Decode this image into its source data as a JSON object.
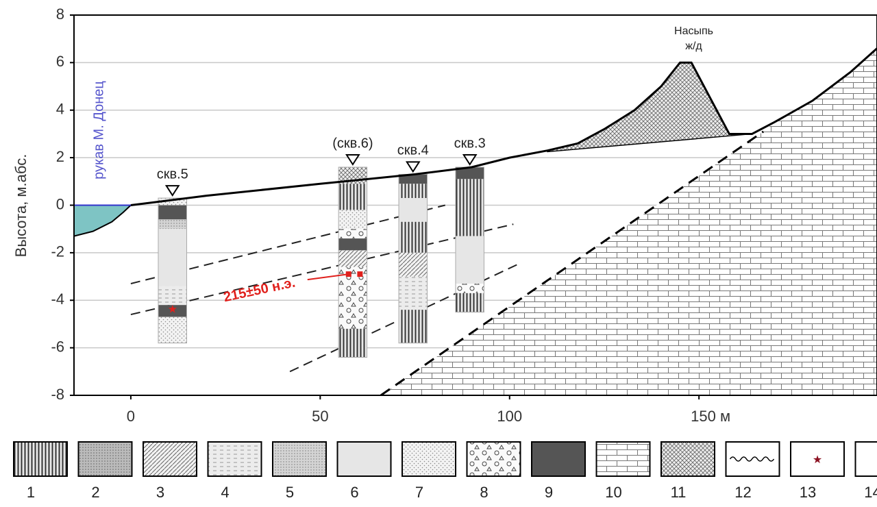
{
  "chart_data": {
    "type": "cross-section",
    "ylabel": "Высота, м.абс.",
    "xlim": [
      -15,
      197
    ],
    "ylim": [
      -8,
      8
    ],
    "xticks": [
      0,
      50,
      100,
      {
        "value": 150,
        "label": "150 м"
      }
    ],
    "yticks": [
      -8,
      -6,
      -4,
      -2,
      0,
      2,
      4,
      6,
      8
    ],
    "grid": true,
    "river": {
      "label": "рукав М. Донец",
      "color": "#7ec4c4",
      "x": [
        -15,
        -10,
        -5,
        -2,
        0
      ],
      "values": [
        -1.3,
        -1.1,
        -0.7,
        -0.3,
        0
      ]
    },
    "surface": {
      "x": [
        0,
        20,
        50,
        75,
        90,
        100,
        110,
        118,
        125,
        133,
        140,
        145,
        148,
        153,
        158,
        164,
        170,
        180,
        190,
        197
      ],
      "values": [
        0,
        0.4,
        0.9,
        1.3,
        1.6,
        2.0,
        2.3,
        2.6,
        3.2,
        4.0,
        5.0,
        6,
        6,
        4.5,
        3.0,
        3.0,
        3.5,
        4.4,
        5.6,
        6.6
      ]
    },
    "embankment": {
      "label": [
        "Насыпь",
        "ж/д"
      ],
      "x": [
        110,
        164
      ],
      "values": [
        2.25,
        3.0
      ]
    },
    "limestone_boundary": {
      "x": [
        66,
        167
      ],
      "values": [
        -8,
        3.1
      ]
    },
    "boreholes": [
      {
        "name": "скв.5",
        "x": 11,
        "top": 0.3,
        "bottom": -5.8,
        "layers": [
          [
            0.3,
            0,
            7
          ],
          [
            0,
            -0.6,
            9
          ],
          [
            -0.6,
            -1,
            5
          ],
          [
            -1,
            -3.4,
            6
          ],
          [
            -3.4,
            -4.2,
            4
          ],
          [
            -4.2,
            -4.7,
            9
          ],
          [
            -4.7,
            -5.8,
            7
          ]
        ]
      },
      {
        "name": "(скв.6)",
        "x": 58.6,
        "top": 1.6,
        "bottom": -6.4,
        "layers": [
          [
            1.6,
            0.9,
            11
          ],
          [
            0.9,
            -0.2,
            1
          ],
          [
            -0.2,
            -1,
            7
          ],
          [
            -1,
            -1.4,
            8
          ],
          [
            -1.4,
            -1.9,
            9
          ],
          [
            -1.9,
            -2.6,
            3
          ],
          [
            -2.6,
            -5.2,
            8
          ],
          [
            -5.2,
            -6.4,
            1
          ]
        ]
      },
      {
        "name": "скв.4",
        "x": 74.5,
        "top": 1.3,
        "bottom": -5.8,
        "layers": [
          [
            1.3,
            0.9,
            9
          ],
          [
            0.9,
            0.3,
            1
          ],
          [
            0.3,
            -0.7,
            6
          ],
          [
            -0.7,
            -2,
            1
          ],
          [
            -2,
            -3,
            3
          ],
          [
            -3,
            -4.4,
            4
          ],
          [
            -4.4,
            -5.8,
            1
          ]
        ]
      },
      {
        "name": "скв.3",
        "x": 89.5,
        "top": 1.6,
        "bottom": -4.5,
        "layers": [
          [
            1.6,
            1.1,
            9
          ],
          [
            1.1,
            -1.3,
            1
          ],
          [
            -1.3,
            -3.3,
            6
          ],
          [
            -3.3,
            -3.7,
            8
          ],
          [
            -3.7,
            -4.5,
            1
          ]
        ]
      }
    ],
    "correlation_lines": [
      {
        "x": [
          0,
          83
        ],
        "values": [
          -3.3,
          0
        ]
      },
      {
        "x": [
          0,
          101
        ],
        "values": [
          -4.6,
          -0.8
        ]
      },
      {
        "x": [
          42,
          102
        ],
        "values": [
          -7,
          -2.5
        ]
      }
    ],
    "date": {
      "label": "215±50 н.э.",
      "color": "#e0201c",
      "x": [
        57.5,
        60.5
      ],
      "values": [
        -2.9,
        -2.9
      ]
    },
    "star": {
      "x": 11,
      "y": -4.4
    },
    "legend": [
      1,
      2,
      3,
      4,
      5,
      6,
      7,
      8,
      9,
      10,
      11,
      12,
      13,
      14
    ]
  }
}
